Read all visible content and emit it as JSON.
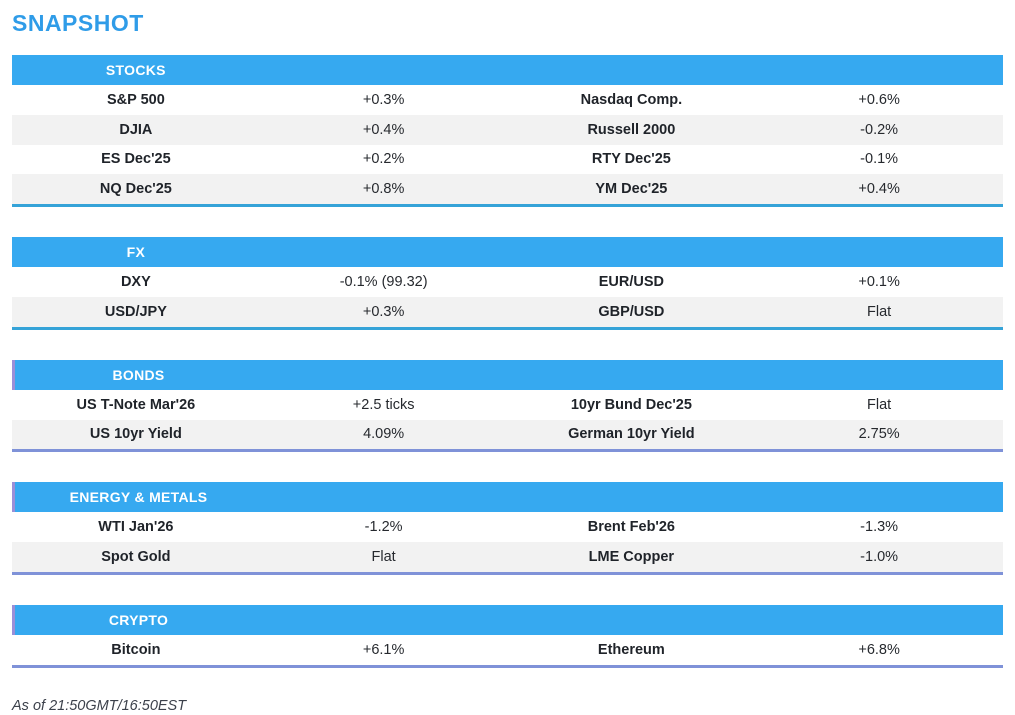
{
  "page_title": "SNAPSHOT",
  "footer_note": "As of 21:50GMT/16:50EST",
  "colors": {
    "title_blue": "#2f9ce8",
    "section_header_blue": "#36a9f0",
    "section_divider_cyan": "#35a3d8",
    "section_divider_periwinkle": "#7f92d8",
    "row_alt_gray": "#f2f2f2",
    "header_text": "#ffffff",
    "body_text": "#222222"
  },
  "sections": [
    {
      "title": "STOCKS",
      "rows": [
        {
          "cells": [
            "S&P 500",
            "+0.3%",
            "Nasdaq Comp.",
            "+0.6%"
          ]
        },
        {
          "cells": [
            "DJIA",
            "+0.4%",
            "Russell 2000",
            "-0.2%"
          ]
        },
        {
          "cells": [
            "ES Dec'25",
            "+0.2%",
            "RTY Dec'25",
            "-0.1%"
          ]
        },
        {
          "cells": [
            "NQ Dec'25",
            "+0.8%",
            "YM Dec'25",
            "+0.4%"
          ]
        }
      ]
    },
    {
      "title": "FX",
      "rows": [
        {
          "cells": [
            "DXY",
            "-0.1% (99.32)",
            "EUR/USD",
            "+0.1%"
          ]
        },
        {
          "cells": [
            "USD/JPY",
            "+0.3%",
            "GBP/USD",
            "Flat"
          ]
        }
      ]
    },
    {
      "title": "BONDS",
      "rows": [
        {
          "cells": [
            "US T-Note Mar'26",
            "+2.5 ticks",
            "10yr Bund Dec'25",
            "Flat"
          ]
        },
        {
          "cells": [
            "US 10yr Yield",
            "4.09%",
            "German 10yr Yield",
            "2.75%"
          ]
        }
      ]
    },
    {
      "title": "ENERGY & METALS",
      "rows": [
        {
          "cells": [
            "WTI Jan'26",
            "-1.2%",
            "Brent Feb'26",
            "-1.3%"
          ]
        },
        {
          "cells": [
            "Spot Gold",
            "Flat",
            "LME Copper",
            "-1.0%"
          ]
        }
      ]
    },
    {
      "title": "CRYPTO",
      "rows": [
        {
          "cells": [
            "Bitcoin",
            "+6.1%",
            "Ethereum",
            "+6.8%"
          ]
        }
      ]
    }
  ]
}
